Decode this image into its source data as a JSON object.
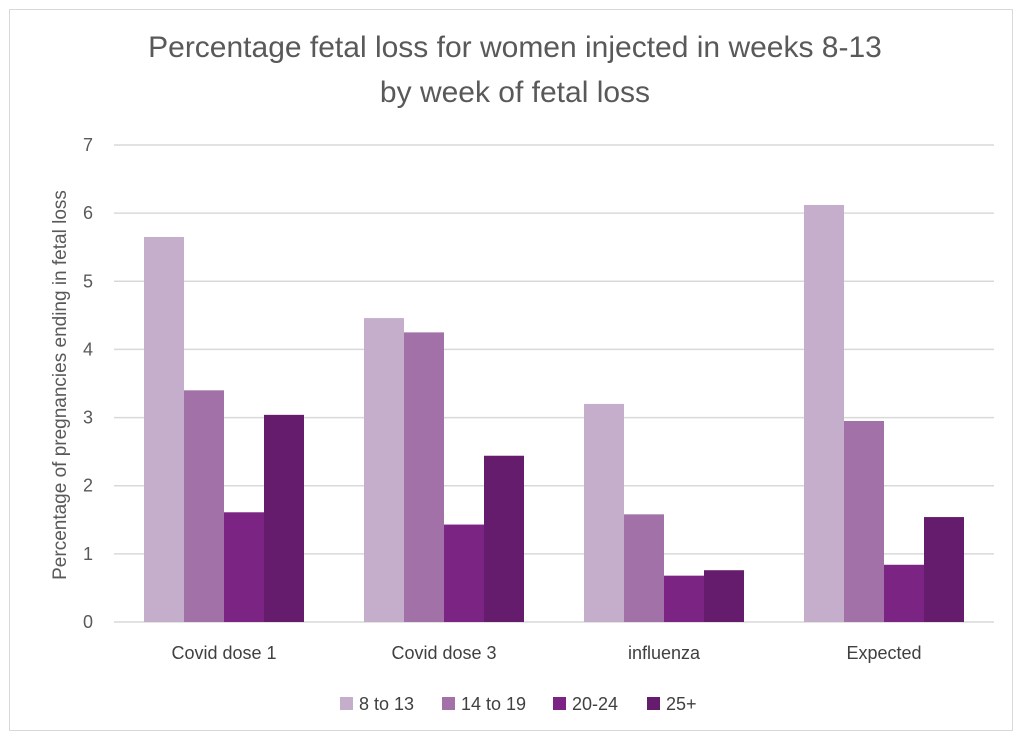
{
  "chart_data": {
    "type": "bar",
    "title": [
      "Percentage fetal loss for women injected in weeks 8-13",
      "by week of fetal loss"
    ],
    "xlabel": "",
    "ylabel": "Percentage of pregnancies ending in fetal loss",
    "ylim": [
      0,
      7
    ],
    "yticks": [
      "0",
      "1",
      "2",
      "3",
      "4",
      "5",
      "6",
      "7"
    ],
    "grid": true,
    "legend_position": "bottom",
    "categories": [
      "Covid dose 1",
      "Covid dose 3",
      "influenza",
      "Expected"
    ],
    "series": [
      {
        "name": "8 to 13",
        "color": "#c4aecb",
        "values": [
          5.65,
          4.46,
          3.2,
          6.12
        ]
      },
      {
        "name": "14 to 19",
        "color": "#a271a8",
        "values": [
          3.4,
          4.25,
          1.58,
          2.95
        ]
      },
      {
        "name": "20-24",
        "color": "#7b2484",
        "values": [
          1.61,
          1.43,
          0.68,
          0.84
        ]
      },
      {
        "name": "25+",
        "color": "#661c6c",
        "values": [
          3.04,
          2.44,
          0.76,
          1.54
        ]
      }
    ]
  }
}
